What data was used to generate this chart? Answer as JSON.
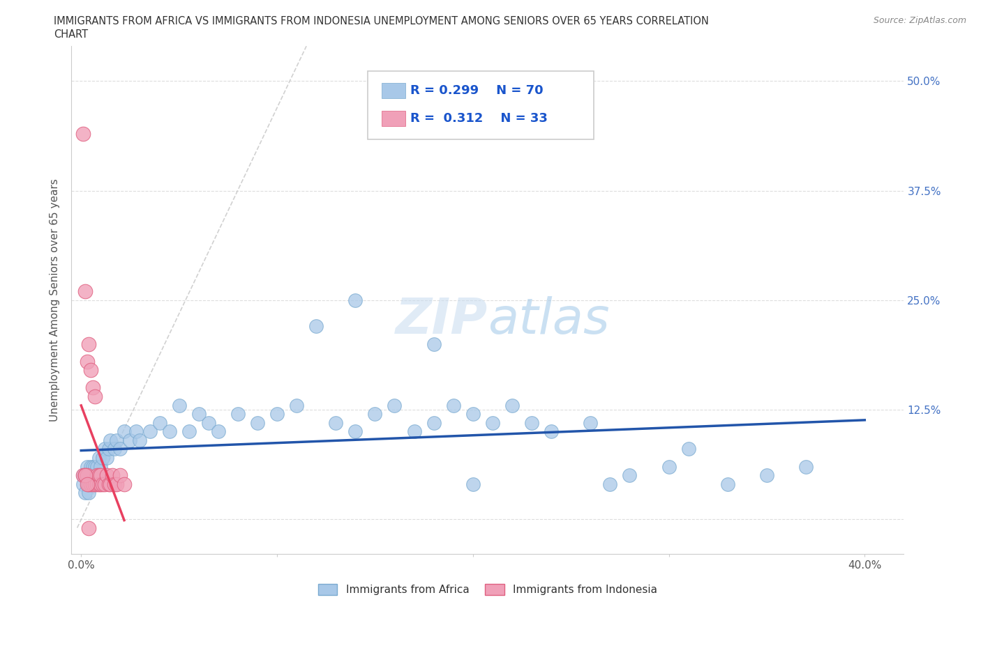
{
  "title_line1": "IMMIGRANTS FROM AFRICA VS IMMIGRANTS FROM INDONESIA UNEMPLOYMENT AMONG SENIORS OVER 65 YEARS CORRELATION",
  "title_line2": "CHART",
  "source": "Source: ZipAtlas.com",
  "ylabel": "Unemployment Among Seniors over 65 years",
  "xlim": [
    -0.005,
    0.42
  ],
  "ylim": [
    -0.04,
    0.54
  ],
  "yticks": [
    0.0,
    0.125,
    0.25,
    0.375,
    0.5
  ],
  "xticks": [
    0.0,
    0.1,
    0.2,
    0.3,
    0.4
  ],
  "africa_color": "#A8C8E8",
  "indonesia_color": "#F0A0B8",
  "africa_edge": "#7AAAD0",
  "indonesia_edge": "#E06080",
  "africa_R": 0.299,
  "africa_N": 70,
  "indonesia_R": 0.312,
  "indonesia_N": 33,
  "watermark_color": "#D0E8F8",
  "grid_color": "#DDDDDD",
  "right_tick_color": "#4472C4",
  "trend_blue": "#2255AA",
  "trend_pink": "#E84060",
  "diag_color": "#CCCCCC",
  "africa_x": [
    0.001,
    0.001,
    0.002,
    0.002,
    0.003,
    0.003,
    0.003,
    0.004,
    0.004,
    0.004,
    0.005,
    0.005,
    0.006,
    0.006,
    0.006,
    0.007,
    0.007,
    0.008,
    0.008,
    0.009,
    0.009,
    0.01,
    0.011,
    0.012,
    0.013,
    0.014,
    0.015,
    0.017,
    0.018,
    0.02,
    0.022,
    0.025,
    0.028,
    0.03,
    0.035,
    0.04,
    0.045,
    0.05,
    0.055,
    0.06,
    0.065,
    0.07,
    0.08,
    0.09,
    0.1,
    0.11,
    0.12,
    0.13,
    0.14,
    0.15,
    0.16,
    0.17,
    0.18,
    0.19,
    0.2,
    0.21,
    0.22,
    0.23,
    0.24,
    0.26,
    0.27,
    0.28,
    0.3,
    0.31,
    0.33,
    0.35,
    0.37,
    0.18,
    0.2,
    0.14
  ],
  "africa_y": [
    0.04,
    0.05,
    0.03,
    0.05,
    0.04,
    0.05,
    0.06,
    0.04,
    0.05,
    0.03,
    0.05,
    0.06,
    0.04,
    0.05,
    0.06,
    0.05,
    0.06,
    0.05,
    0.06,
    0.05,
    0.07,
    0.06,
    0.07,
    0.08,
    0.07,
    0.08,
    0.09,
    0.08,
    0.09,
    0.08,
    0.1,
    0.09,
    0.1,
    0.09,
    0.1,
    0.11,
    0.1,
    0.13,
    0.1,
    0.12,
    0.11,
    0.1,
    0.12,
    0.11,
    0.12,
    0.13,
    0.22,
    0.11,
    0.1,
    0.12,
    0.13,
    0.1,
    0.11,
    0.13,
    0.12,
    0.11,
    0.13,
    0.11,
    0.1,
    0.11,
    0.04,
    0.05,
    0.06,
    0.08,
    0.04,
    0.05,
    0.06,
    0.2,
    0.04,
    0.25
  ],
  "indonesia_x": [
    0.001,
    0.001,
    0.002,
    0.002,
    0.003,
    0.003,
    0.004,
    0.004,
    0.005,
    0.005,
    0.006,
    0.006,
    0.007,
    0.007,
    0.008,
    0.008,
    0.009,
    0.009,
    0.01,
    0.01,
    0.011,
    0.012,
    0.013,
    0.014,
    0.015,
    0.016,
    0.017,
    0.018,
    0.02,
    0.022,
    0.002,
    0.003,
    0.004
  ],
  "indonesia_y": [
    0.44,
    0.05,
    0.26,
    0.05,
    0.05,
    0.18,
    0.2,
    0.04,
    0.17,
    0.04,
    0.15,
    0.04,
    0.14,
    0.04,
    0.05,
    0.04,
    0.04,
    0.05,
    0.04,
    0.05,
    0.04,
    0.04,
    0.05,
    0.04,
    0.04,
    0.05,
    0.04,
    0.04,
    0.05,
    0.04,
    0.05,
    0.04,
    -0.01
  ]
}
